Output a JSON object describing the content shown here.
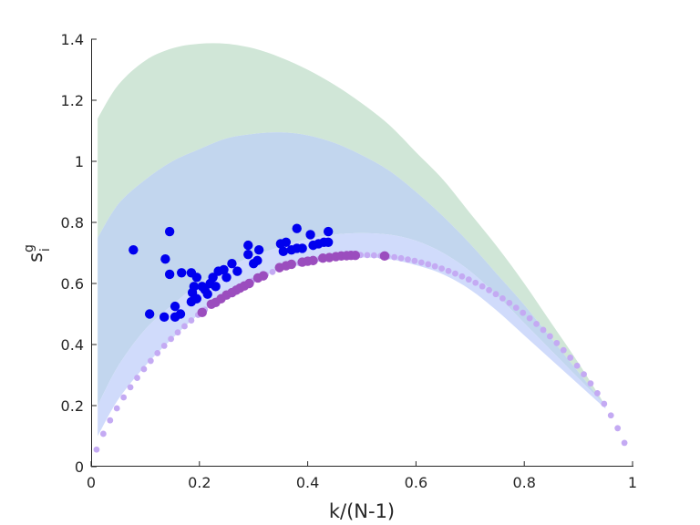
{
  "chart_data": {
    "type": "scatter",
    "title": "",
    "xlabel": "k/(N-1)",
    "ylabel_main": "s",
    "ylabel_sup": "g",
    "ylabel_sub": "i",
    "xlim": [
      0,
      1
    ],
    "ylim": [
      0,
      1.4
    ],
    "grid": false,
    "xticks": [
      0,
      0.2,
      0.4,
      0.6,
      0.8,
      1
    ],
    "xtick_labels": [
      "0",
      "0.2",
      "0.4",
      "0.6",
      "0.8",
      "1"
    ],
    "yticks": [
      0,
      0.2,
      0.4,
      0.6,
      0.8,
      1,
      1.2,
      1.4
    ],
    "ytick_labels": [
      "0",
      "0.2",
      "0.4",
      "0.6",
      "0.8",
      "1",
      "1.2",
      "1.4"
    ],
    "colors": {
      "green_band": "#d0e6d7",
      "blue_band": "#c2d6ee",
      "lavender_band": "#d0dbfb",
      "blue_points": "#0000ee",
      "purple_points": "#9b4dbe",
      "light_purple_points": "#c4aaf3",
      "axis": "#262626"
    },
    "bands": [
      {
        "color_key": "green_band",
        "upper": [
          [
            0.012,
            1.14
          ],
          [
            0.05,
            1.25
          ],
          [
            0.1,
            1.33
          ],
          [
            0.15,
            1.37
          ],
          [
            0.2,
            1.385
          ],
          [
            0.25,
            1.385
          ],
          [
            0.3,
            1.37
          ],
          [
            0.35,
            1.34
          ],
          [
            0.4,
            1.3
          ],
          [
            0.45,
            1.25
          ],
          [
            0.5,
            1.19
          ],
          [
            0.55,
            1.12
          ],
          [
            0.6,
            1.03
          ],
          [
            0.65,
            0.94
          ],
          [
            0.7,
            0.83
          ],
          [
            0.75,
            0.72
          ],
          [
            0.8,
            0.6
          ],
          [
            0.85,
            0.47
          ],
          [
            0.9,
            0.34
          ],
          [
            0.95,
            0.2
          ]
        ],
        "lower": [
          [
            0.012,
            0.75
          ],
          [
            0.05,
            0.86
          ],
          [
            0.1,
            0.94
          ],
          [
            0.15,
            1.0
          ],
          [
            0.2,
            1.04
          ],
          [
            0.25,
            1.075
          ],
          [
            0.3,
            1.09
          ],
          [
            0.35,
            1.095
          ],
          [
            0.4,
            1.085
          ],
          [
            0.45,
            1.06
          ],
          [
            0.5,
            1.02
          ],
          [
            0.55,
            0.97
          ],
          [
            0.6,
            0.9
          ],
          [
            0.65,
            0.82
          ],
          [
            0.7,
            0.73
          ],
          [
            0.75,
            0.63
          ],
          [
            0.8,
            0.53
          ],
          [
            0.85,
            0.42
          ],
          [
            0.9,
            0.31
          ],
          [
            0.95,
            0.2
          ]
        ]
      },
      {
        "color_key": "blue_band",
        "upper": [
          [
            0.012,
            0.75
          ],
          [
            0.05,
            0.86
          ],
          [
            0.1,
            0.94
          ],
          [
            0.15,
            1.0
          ],
          [
            0.2,
            1.04
          ],
          [
            0.25,
            1.075
          ],
          [
            0.3,
            1.09
          ],
          [
            0.35,
            1.095
          ],
          [
            0.4,
            1.085
          ],
          [
            0.45,
            1.06
          ],
          [
            0.5,
            1.02
          ],
          [
            0.55,
            0.97
          ],
          [
            0.6,
            0.9
          ],
          [
            0.65,
            0.82
          ],
          [
            0.7,
            0.73
          ],
          [
            0.75,
            0.63
          ],
          [
            0.8,
            0.53
          ],
          [
            0.85,
            0.42
          ],
          [
            0.9,
            0.31
          ],
          [
            0.95,
            0.2
          ]
        ],
        "lower": [
          [
            0.012,
            0.2
          ],
          [
            0.05,
            0.33
          ],
          [
            0.1,
            0.45
          ],
          [
            0.15,
            0.53
          ],
          [
            0.2,
            0.6
          ],
          [
            0.25,
            0.65
          ],
          [
            0.3,
            0.69
          ],
          [
            0.35,
            0.72
          ],
          [
            0.4,
            0.745
          ],
          [
            0.45,
            0.76
          ],
          [
            0.5,
            0.765
          ],
          [
            0.55,
            0.76
          ],
          [
            0.6,
            0.74
          ],
          [
            0.65,
            0.7
          ],
          [
            0.7,
            0.64
          ],
          [
            0.75,
            0.56
          ],
          [
            0.8,
            0.47
          ],
          [
            0.85,
            0.38
          ],
          [
            0.9,
            0.29
          ],
          [
            0.95,
            0.2
          ]
        ]
      },
      {
        "color_key": "lavender_band",
        "upper": [
          [
            0.012,
            0.2
          ],
          [
            0.05,
            0.33
          ],
          [
            0.1,
            0.45
          ],
          [
            0.15,
            0.53
          ],
          [
            0.2,
            0.6
          ],
          [
            0.25,
            0.65
          ],
          [
            0.3,
            0.69
          ],
          [
            0.35,
            0.72
          ],
          [
            0.4,
            0.745
          ],
          [
            0.45,
            0.76
          ],
          [
            0.5,
            0.765
          ],
          [
            0.55,
            0.76
          ],
          [
            0.6,
            0.74
          ],
          [
            0.65,
            0.7
          ],
          [
            0.7,
            0.64
          ],
          [
            0.75,
            0.56
          ],
          [
            0.8,
            0.47
          ],
          [
            0.85,
            0.38
          ],
          [
            0.9,
            0.29
          ],
          [
            0.95,
            0.2
          ]
        ],
        "lower": [
          [
            0.012,
            0.1
          ],
          [
            0.05,
            0.22
          ],
          [
            0.1,
            0.33
          ],
          [
            0.15,
            0.42
          ],
          [
            0.2,
            0.5
          ],
          [
            0.25,
            0.56
          ],
          [
            0.3,
            0.61
          ],
          [
            0.35,
            0.645
          ],
          [
            0.4,
            0.665
          ],
          [
            0.45,
            0.68
          ],
          [
            0.5,
            0.685
          ],
          [
            0.55,
            0.68
          ],
          [
            0.6,
            0.66
          ],
          [
            0.65,
            0.63
          ],
          [
            0.7,
            0.58
          ],
          [
            0.75,
            0.51
          ],
          [
            0.8,
            0.43
          ],
          [
            0.85,
            0.35
          ],
          [
            0.9,
            0.27
          ],
          [
            0.95,
            0.19
          ]
        ]
      }
    ],
    "series": [
      {
        "name": "",
        "color_key": "light_purple_points",
        "marker_size": "small",
        "curve": "x*ln(1/x)+(1-x)*ln(1/(1-x))",
        "x_start": 0.01,
        "x_end": 0.99,
        "x_step": 0.0125
      },
      {
        "name": "",
        "color_key": "purple_points",
        "marker_size": "large",
        "points": [
          [
            0.205,
            0.505
          ],
          [
            0.222,
            0.532
          ],
          [
            0.23,
            0.538
          ],
          [
            0.24,
            0.55
          ],
          [
            0.25,
            0.562
          ],
          [
            0.26,
            0.57
          ],
          [
            0.268,
            0.578
          ],
          [
            0.275,
            0.585
          ],
          [
            0.283,
            0.592
          ],
          [
            0.292,
            0.6
          ],
          [
            0.308,
            0.618
          ],
          [
            0.318,
            0.625
          ],
          [
            0.348,
            0.652
          ],
          [
            0.36,
            0.658
          ],
          [
            0.37,
            0.663
          ],
          [
            0.39,
            0.67
          ],
          [
            0.4,
            0.673
          ],
          [
            0.41,
            0.675
          ],
          [
            0.428,
            0.683
          ],
          [
            0.44,
            0.685
          ],
          [
            0.452,
            0.688
          ],
          [
            0.462,
            0.69
          ],
          [
            0.472,
            0.691
          ],
          [
            0.48,
            0.692
          ],
          [
            0.488,
            0.692
          ],
          [
            0.542,
            0.69
          ]
        ]
      },
      {
        "name": "",
        "color_key": "blue_points",
        "marker_size": "large",
        "points": [
          [
            0.078,
            0.71
          ],
          [
            0.108,
            0.5
          ],
          [
            0.135,
            0.49
          ],
          [
            0.137,
            0.68
          ],
          [
            0.145,
            0.63
          ],
          [
            0.145,
            0.77
          ],
          [
            0.155,
            0.49
          ],
          [
            0.155,
            0.525
          ],
          [
            0.165,
            0.5
          ],
          [
            0.167,
            0.635
          ],
          [
            0.185,
            0.635
          ],
          [
            0.185,
            0.54
          ],
          [
            0.187,
            0.57
          ],
          [
            0.19,
            0.59
          ],
          [
            0.195,
            0.62
          ],
          [
            0.195,
            0.55
          ],
          [
            0.205,
            0.59
          ],
          [
            0.21,
            0.58
          ],
          [
            0.215,
            0.565
          ],
          [
            0.22,
            0.6
          ],
          [
            0.225,
            0.62
          ],
          [
            0.23,
            0.59
          ],
          [
            0.235,
            0.64
          ],
          [
            0.245,
            0.645
          ],
          [
            0.25,
            0.62
          ],
          [
            0.26,
            0.665
          ],
          [
            0.27,
            0.64
          ],
          [
            0.29,
            0.725
          ],
          [
            0.29,
            0.695
          ],
          [
            0.3,
            0.665
          ],
          [
            0.307,
            0.675
          ],
          [
            0.31,
            0.71
          ],
          [
            0.35,
            0.73
          ],
          [
            0.355,
            0.705
          ],
          [
            0.36,
            0.735
          ],
          [
            0.37,
            0.71
          ],
          [
            0.38,
            0.78
          ],
          [
            0.38,
            0.715
          ],
          [
            0.39,
            0.715
          ],
          [
            0.405,
            0.76
          ],
          [
            0.41,
            0.725
          ],
          [
            0.42,
            0.73
          ],
          [
            0.43,
            0.735
          ],
          [
            0.438,
            0.735
          ],
          [
            0.438,
            0.77
          ]
        ]
      }
    ]
  }
}
